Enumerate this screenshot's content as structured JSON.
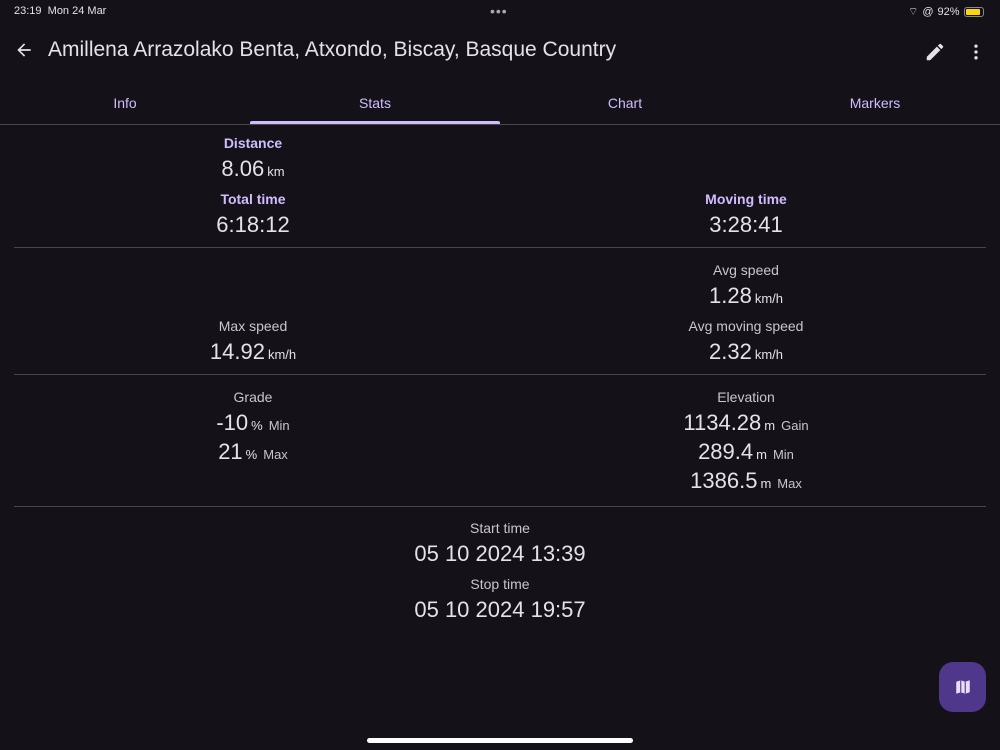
{
  "status_bar": {
    "time": "23:19",
    "date": "Mon 24 Mar",
    "battery": "92%",
    "battery_color": "#ffd60a"
  },
  "header": {
    "title": "Amillena Arrazolako Benta, Atxondo, Biscay, Basque Country"
  },
  "tabs": [
    {
      "label": "Info"
    },
    {
      "label": "Stats",
      "selected": true
    },
    {
      "label": "Chart"
    },
    {
      "label": "Markers"
    }
  ],
  "stats": {
    "distance": {
      "label": "Distance",
      "value": "8.06",
      "unit": "km"
    },
    "total_time": {
      "label": "Total time",
      "value": "6:18:12"
    },
    "moving_time": {
      "label": "Moving time",
      "value": "3:28:41"
    },
    "avg_speed": {
      "label": "Avg speed",
      "value": "1.28",
      "unit": "km/h"
    },
    "max_speed": {
      "label": "Max speed",
      "value": "14.92",
      "unit": "km/h"
    },
    "avg_moving_speed": {
      "label": "Avg moving speed",
      "value": "2.32",
      "unit": "km/h"
    },
    "grade": {
      "label": "Grade",
      "min": {
        "value": "-10",
        "unit": "%",
        "suffix": "Min"
      },
      "max": {
        "value": "21",
        "unit": "%",
        "suffix": "Max"
      }
    },
    "elevation": {
      "label": "Elevation",
      "gain": {
        "value": "1134.28",
        "unit": "m",
        "suffix": "Gain"
      },
      "min": {
        "value": "289.4",
        "unit": "m",
        "suffix": "Min"
      },
      "max": {
        "value": "1386.5",
        "unit": "m",
        "suffix": "Max"
      }
    },
    "start_time": {
      "label": "Start time",
      "value": "05 10 2024 13:39"
    },
    "stop_time": {
      "label": "Stop time",
      "value": "05 10 2024 19:57"
    }
  },
  "colors": {
    "accent": "#d0bcff",
    "fab": "#4f378b",
    "background": "#141218"
  }
}
